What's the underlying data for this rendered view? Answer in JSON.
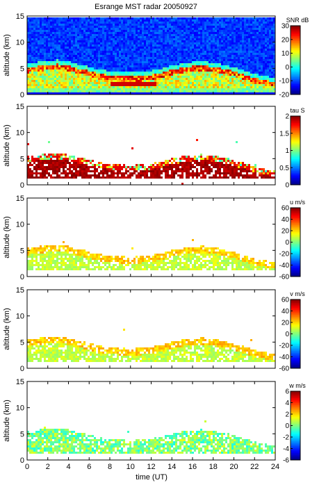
{
  "title": "Esrange MST radar 20050927",
  "xlabel": "time (UT)",
  "chart_data": [
    {
      "type": "heatmap",
      "ylabel": "altitude (km)",
      "colorbar_label": "SNR dB",
      "colorbar_ticks": [
        30,
        20,
        10,
        0,
        -10,
        -20
      ],
      "clim": [
        -20,
        30
      ],
      "x_ticks": [
        "0",
        "2",
        "4",
        "6",
        "8",
        "10",
        "12",
        "14",
        "16",
        "18",
        "20",
        "22",
        "24"
      ],
      "y_ticks": [
        "0",
        "5",
        "10",
        "15"
      ],
      "xlim": [
        0,
        24
      ],
      "ylim": [
        0,
        15
      ],
      "layer_top_km": [
        5.2,
        5.5,
        5.8,
        5.9,
        5.6,
        5.0,
        4.6,
        4.0,
        3.8,
        3.6,
        3.5,
        3.6,
        3.8,
        4.2,
        4.8,
        5.2,
        5.5,
        5.6,
        5.4,
        5.0,
        4.5,
        3.9,
        3.2,
        2.8,
        2.4
      ],
      "layer_peak_dB": 25,
      "background_dB": -12
    },
    {
      "type": "heatmap",
      "ylabel": "altitude (km)",
      "colorbar_label": "tau S",
      "colorbar_ticks": [
        2,
        1.5,
        1,
        0.5,
        0
      ],
      "clim": [
        0,
        2
      ],
      "x_ticks": [
        "0",
        "2",
        "4",
        "6",
        "8",
        "10",
        "12",
        "14",
        "16",
        "18",
        "20",
        "22",
        "24"
      ],
      "y_ticks": [
        "0",
        "5",
        "10",
        "15"
      ],
      "xlim": [
        0,
        24
      ],
      "ylim": [
        0,
        15
      ]
    },
    {
      "type": "heatmap",
      "ylabel": "altitude (km)",
      "colorbar_label": "u m/s",
      "colorbar_ticks": [
        60,
        40,
        20,
        0,
        -20,
        -40,
        -60
      ],
      "clim": [
        -60,
        60
      ],
      "x_ticks": [
        "0",
        "2",
        "4",
        "6",
        "8",
        "10",
        "12",
        "14",
        "16",
        "18",
        "20",
        "22",
        "24"
      ],
      "y_ticks": [
        "0",
        "5",
        "10",
        "15"
      ],
      "xlim": [
        0,
        24
      ],
      "ylim": [
        0,
        15
      ]
    },
    {
      "type": "heatmap",
      "ylabel": "altitude (km)",
      "colorbar_label": "v m/s",
      "colorbar_ticks": [
        60,
        40,
        20,
        0,
        -20,
        -40,
        -60
      ],
      "clim": [
        -60,
        60
      ],
      "x_ticks": [
        "0",
        "2",
        "4",
        "6",
        "8",
        "10",
        "12",
        "14",
        "16",
        "18",
        "20",
        "22",
        "24"
      ],
      "y_ticks": [
        "0",
        "5",
        "10",
        "15"
      ],
      "xlim": [
        0,
        24
      ],
      "ylim": [
        0,
        15
      ]
    },
    {
      "type": "heatmap",
      "ylabel": "altitude (km)",
      "colorbar_label": "w m/s",
      "colorbar_ticks": [
        6,
        4,
        2,
        0,
        -2,
        -4,
        -6
      ],
      "clim": [
        -6,
        6
      ],
      "x_ticks": [
        "0",
        "2",
        "4",
        "6",
        "8",
        "10",
        "12",
        "14",
        "16",
        "18",
        "20",
        "22",
        "24"
      ],
      "y_ticks": [
        "0",
        "5",
        "10",
        "15"
      ],
      "xlim": [
        0,
        24
      ],
      "ylim": [
        0,
        15
      ]
    }
  ]
}
